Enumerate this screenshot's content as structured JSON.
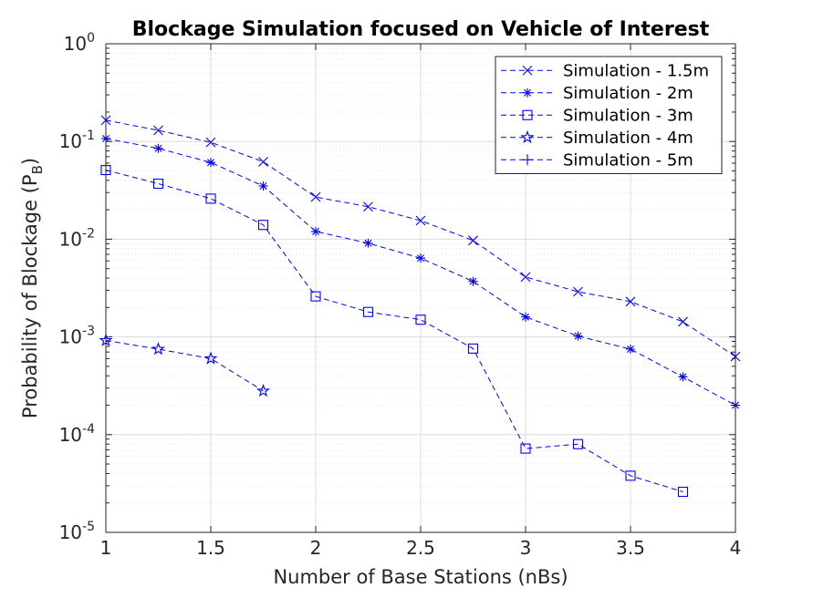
{
  "chart_data": {
    "type": "line",
    "title": "Blockage Simulation focused on Vehicle of Interest",
    "xlabel": "Number of Base Stations (nBs)",
    "ylabel": "Probability of Blockage (P",
    "ylabel_subscript": "B",
    "ylabel_close": ")",
    "xlim": [
      1,
      4
    ],
    "ylim": [
      1e-05,
      1
    ],
    "yscale": "log",
    "grid": true,
    "minor_grid": true,
    "legend_position": "top-right",
    "x_ticks": [
      {
        "value": 1,
        "label": "1"
      },
      {
        "value": 1.5,
        "label": "1.5"
      },
      {
        "value": 2,
        "label": "2"
      },
      {
        "value": 2.5,
        "label": "2.5"
      },
      {
        "value": 3,
        "label": "3"
      },
      {
        "value": 3.5,
        "label": "3.5"
      },
      {
        "value": 4,
        "label": "4"
      }
    ],
    "y_ticks": [
      {
        "value": 1,
        "base": "10",
        "exp": "0"
      },
      {
        "value": 0.1,
        "base": "10",
        "exp": "-1"
      },
      {
        "value": 0.01,
        "base": "10",
        "exp": "-2"
      },
      {
        "value": 0.001,
        "base": "10",
        "exp": "-3"
      },
      {
        "value": 0.0001,
        "base": "10",
        "exp": "-4"
      },
      {
        "value": 1e-05,
        "base": "10",
        "exp": "-5"
      }
    ],
    "color": "#0000ff",
    "series": [
      {
        "name": "Simulation - 1.5m",
        "marker": "x",
        "x": [
          1,
          1.25,
          1.5,
          1.75,
          2,
          2.25,
          2.5,
          2.75,
          3,
          3.25,
          3.5,
          3.75,
          4
        ],
        "values": [
          0.165,
          0.13,
          0.098,
          0.062,
          0.027,
          0.0215,
          0.0155,
          0.0097,
          0.0041,
          0.0029,
          0.0023,
          0.00143,
          0.00063
        ]
      },
      {
        "name": "Simulation - 2m",
        "marker": "asterisk",
        "x": [
          1,
          1.25,
          1.5,
          1.75,
          2,
          2.25,
          2.5,
          2.75,
          3,
          3.25,
          3.5,
          3.75,
          4
        ],
        "values": [
          0.107,
          0.085,
          0.061,
          0.035,
          0.012,
          0.0091,
          0.0064,
          0.0037,
          0.0016,
          0.00102,
          0.00075,
          0.00039,
          0.0002
        ]
      },
      {
        "name": "Simulation - 3m",
        "marker": "square",
        "x": [
          1,
          1.25,
          1.5,
          1.75,
          2,
          2.25,
          2.5,
          2.75,
          3,
          3.25,
          3.5,
          3.75
        ],
        "values": [
          0.051,
          0.037,
          0.026,
          0.014,
          0.0026,
          0.0018,
          0.0015,
          0.00076,
          7.2e-05,
          8e-05,
          3.8e-05,
          2.6e-05
        ]
      },
      {
        "name": "Simulation - 4m",
        "marker": "pentagram",
        "x": [
          1,
          1.25,
          1.5,
          1.75
        ],
        "values": [
          0.00092,
          0.00075,
          0.0006,
          0.00028
        ]
      },
      {
        "name": "Simulation - 5m",
        "marker": "plus",
        "x": [],
        "values": []
      }
    ]
  }
}
